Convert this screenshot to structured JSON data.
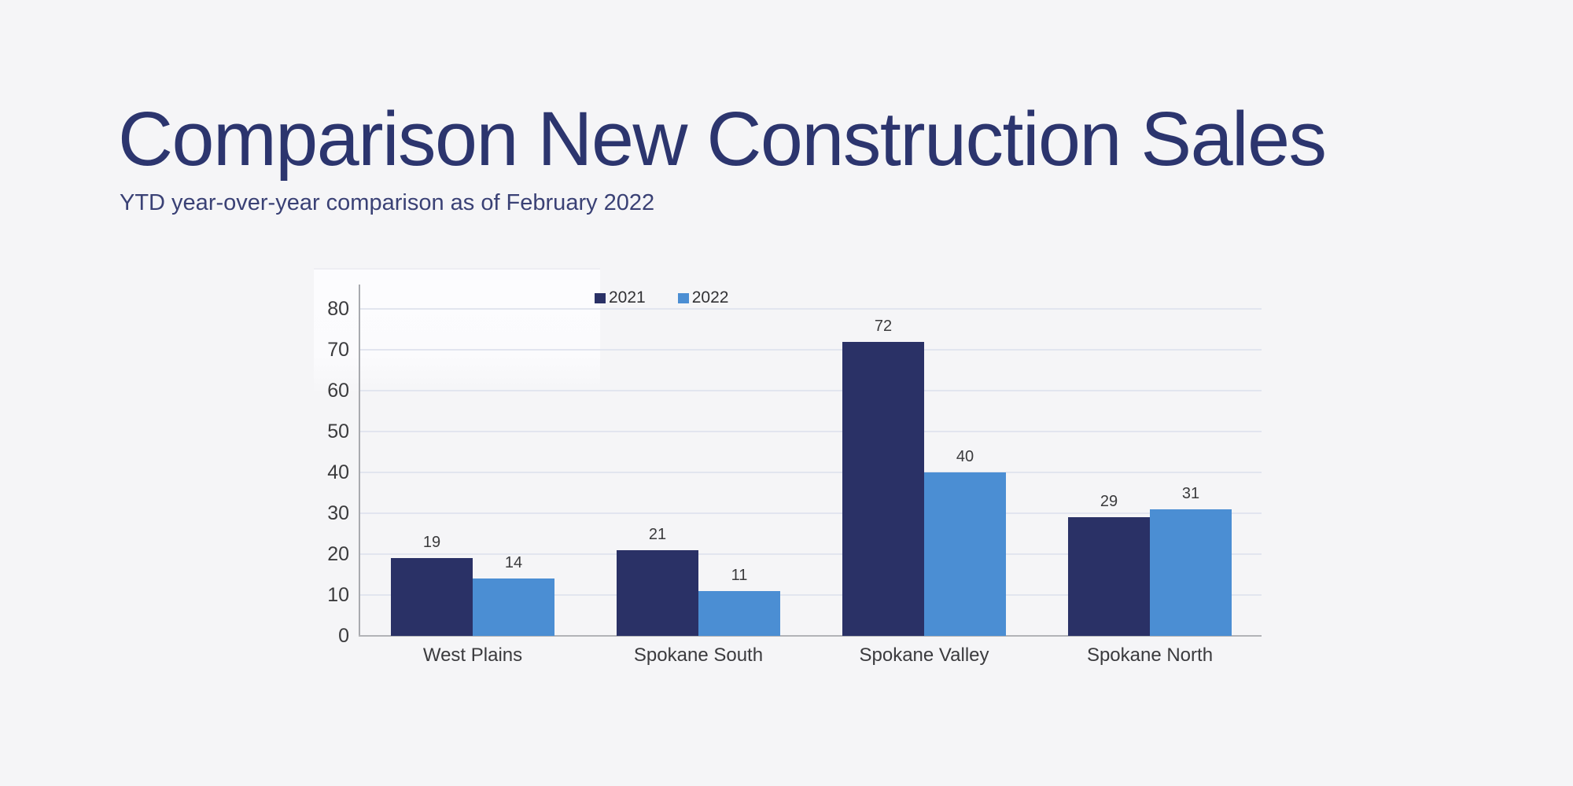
{
  "page": {
    "background_color": "#f5f5f7"
  },
  "header": {
    "title": "Comparison New Construction Sales",
    "subtitle": "YTD year-over-year comparison as of February 2022",
    "title_color": "#2c356e",
    "subtitle_color": "#3a4175"
  },
  "chart_data": {
    "type": "bar",
    "title": "",
    "xlabel": "",
    "ylabel": "",
    "categories": [
      "West Plains",
      "Spokane South",
      "Spokane Valley",
      "Spokane North"
    ],
    "series": [
      {
        "name": "2021",
        "color": "#2a3166",
        "values": [
          19,
          21,
          72,
          29
        ]
      },
      {
        "name": "2022",
        "color": "#4b8ed3",
        "values": [
          14,
          11,
          40,
          31
        ]
      }
    ],
    "data_labels": [
      [
        19,
        21,
        72,
        29
      ],
      [
        14,
        11,
        40,
        31
      ]
    ],
    "ylim": [
      0,
      80
    ],
    "ytick_step": 10,
    "yticks": [
      0,
      10,
      20,
      30,
      40,
      50,
      60,
      70,
      80
    ],
    "grid": true,
    "legend_position": "top-center",
    "gridline_color": "#e2e5ef",
    "axis_line_color": "#a8aaaf",
    "tick_label_color": "#3b3b3d"
  }
}
